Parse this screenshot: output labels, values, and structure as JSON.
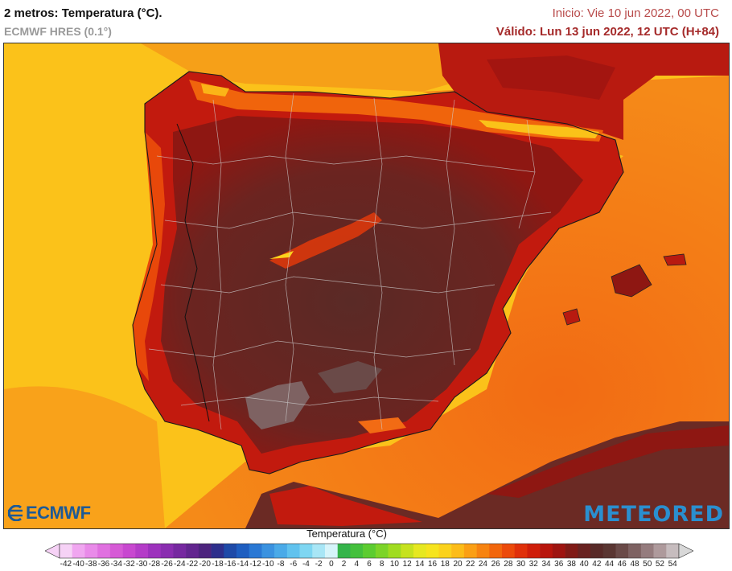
{
  "header": {
    "title": "2 metros: Temperatura (°C).",
    "model": "ECMWF HRES (0.1°)",
    "init": "Inicio: Vie 10 jun 2022, 00 UTC",
    "valid": "Válido: Lun 13 jun 2022, 12 UTC (H+84)"
  },
  "logos": {
    "left": "ECMWF",
    "right": "METEORED"
  },
  "legend": {
    "title": "Temperatura (°C)",
    "ticks": [
      "-42",
      "-40",
      "-38",
      "-36",
      "-34",
      "-32",
      "-30",
      "-28",
      "-26",
      "-24",
      "-22",
      "-20",
      "-18",
      "-16",
      "-14",
      "-12",
      "-10",
      "-8",
      "-6",
      "-4",
      "-2",
      "0",
      "2",
      "4",
      "6",
      "8",
      "10",
      "12",
      "14",
      "16",
      "18",
      "20",
      "22",
      "24",
      "26",
      "28",
      "30",
      "32",
      "34",
      "36",
      "38",
      "40",
      "42",
      "44",
      "46",
      "48",
      "50",
      "52",
      "54"
    ],
    "colors": [
      "#f6d2f6",
      "#f0a6f0",
      "#e98ae9",
      "#e070e0",
      "#d65ad6",
      "#c848d0",
      "#b43cc8",
      "#9d32bd",
      "#8a2db0",
      "#7628a0",
      "#62258f",
      "#4d247e",
      "#2e2f8c",
      "#1e4aa8",
      "#1e5ec0",
      "#2a78d4",
      "#3a92e0",
      "#4aaae8",
      "#60c2ee",
      "#7ed6f2",
      "#a8e6f6",
      "#d6f4fa",
      "#34b44a",
      "#44c03c",
      "#5ccc30",
      "#7cd428",
      "#a0dc20",
      "#c6e21e",
      "#e6e820",
      "#f6e41e",
      "#fbd21c",
      "#fcbc18",
      "#fb9f14",
      "#f78310",
      "#f2660c",
      "#ec4a0a",
      "#e0300a",
      "#cf1e0a",
      "#b8150c",
      "#9e1410",
      "#801a16",
      "#682220",
      "#582a28",
      "#5a3632",
      "#6a4a48",
      "#7e6262",
      "#957c7e",
      "#ae9a9c",
      "#c6bcbe"
    ]
  }
}
